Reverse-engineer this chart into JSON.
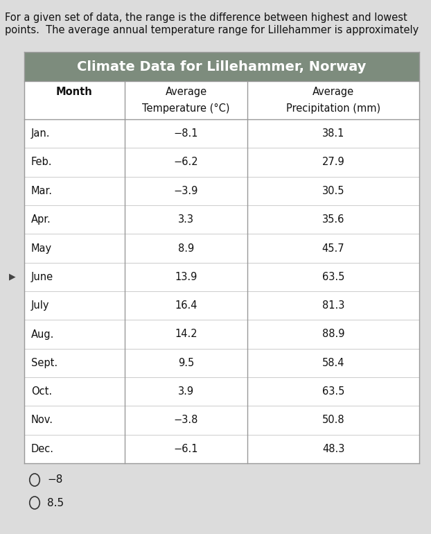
{
  "intro_line1": "For a given set of data, the range is the difference between highest and lowest",
  "intro_line2": "points.  The average annual temperature range for Lillehammer is approximately",
  "table_title": "Climate Data for Lillehammer, Norway",
  "col_headers_row1": [
    "Month",
    "Average",
    "Average"
  ],
  "col_headers_row2": [
    "",
    "Temperature (°C)",
    "Precipitation (mm)"
  ],
  "months": [
    "Jan.",
    "Feb.",
    "Mar.",
    "Apr.",
    "May",
    "June",
    "July",
    "Aug.",
    "Sept.",
    "Oct.",
    "Nov.",
    "Dec."
  ],
  "temperatures": [
    "−8.1",
    "−6.2",
    "−3.9",
    "3.3",
    "8.9",
    "13.9",
    "16.4",
    "14.2",
    "9.5",
    "3.9",
    "−3.8",
    "−6.1"
  ],
  "precipitation": [
    "38.1",
    "27.9",
    "30.5",
    "35.6",
    "45.7",
    "63.5",
    "81.3",
    "88.9",
    "58.4",
    "63.5",
    "50.8",
    "48.3"
  ],
  "options": [
    "−8",
    "8.5"
  ],
  "bg_color": "#dcdcdc",
  "header_bg": "#7d8c7d",
  "header_text_color": "#ffffff",
  "table_bg": "#ffffff",
  "border_color": "#999999",
  "row_line_color": "#cccccc",
  "intro_fontsize": 10.5,
  "title_fontsize": 14,
  "col_header_fontsize": 10.5,
  "cell_fontsize": 10.5,
  "option_fontsize": 11
}
